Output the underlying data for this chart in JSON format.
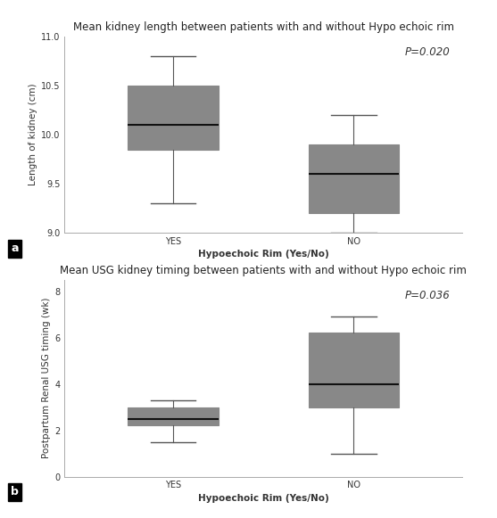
{
  "plot_a": {
    "title": "Mean kidney length between patients with and without Hypo echoic rim",
    "ylabel": "Length of kidney (cm)",
    "xlabel": "Hypoechoic Rim (Yes/No)",
    "pvalue": "P=0.020",
    "ylim": [
      9.0,
      11.0
    ],
    "yticks": [
      9.0,
      9.5,
      10.0,
      10.5,
      11.0
    ],
    "ytick_labels": [
      "9.0",
      "9.5",
      "10.0",
      "10.5",
      "11.0"
    ],
    "categories": [
      "YES",
      "NO"
    ],
    "boxes": [
      {
        "whislo": 9.3,
        "q1": 9.85,
        "med": 10.1,
        "q3": 10.5,
        "whishi": 10.8
      },
      {
        "whislo": 9.0,
        "q1": 9.2,
        "med": 9.6,
        "q3": 9.9,
        "whishi": 10.2
      }
    ]
  },
  "plot_b": {
    "title": "Mean USG kidney timing between patients with and without Hypo echoic rim",
    "ylabel": "Postpartum Renal USG timing (wk)",
    "xlabel": "Hypoechoic Rim (Yes/No)",
    "pvalue": "P=0.036",
    "ylim": [
      0,
      8.5
    ],
    "yticks": [
      0,
      2,
      4,
      6,
      8
    ],
    "ytick_labels": [
      "0",
      "2",
      "4",
      "6",
      "8"
    ],
    "categories": [
      "YES",
      "NO"
    ],
    "boxes": [
      {
        "whislo": 1.5,
        "q1": 2.2,
        "med": 2.5,
        "q3": 3.0,
        "whishi": 3.3
      },
      {
        "whislo": 1.0,
        "q1": 3.0,
        "med": 4.0,
        "q3": 6.2,
        "whishi": 6.9
      }
    ]
  },
  "box_color": "#5b8fc9",
  "box_edge_color": "#888888",
  "median_color": "#111111",
  "whisker_color": "#555555",
  "cap_color": "#555555",
  "background_color": "#ffffff",
  "title_fontsize": 8.5,
  "label_fontsize": 7.5,
  "tick_fontsize": 7,
  "pvalue_fontsize": 8.5,
  "label_a": "a",
  "label_b": "b"
}
